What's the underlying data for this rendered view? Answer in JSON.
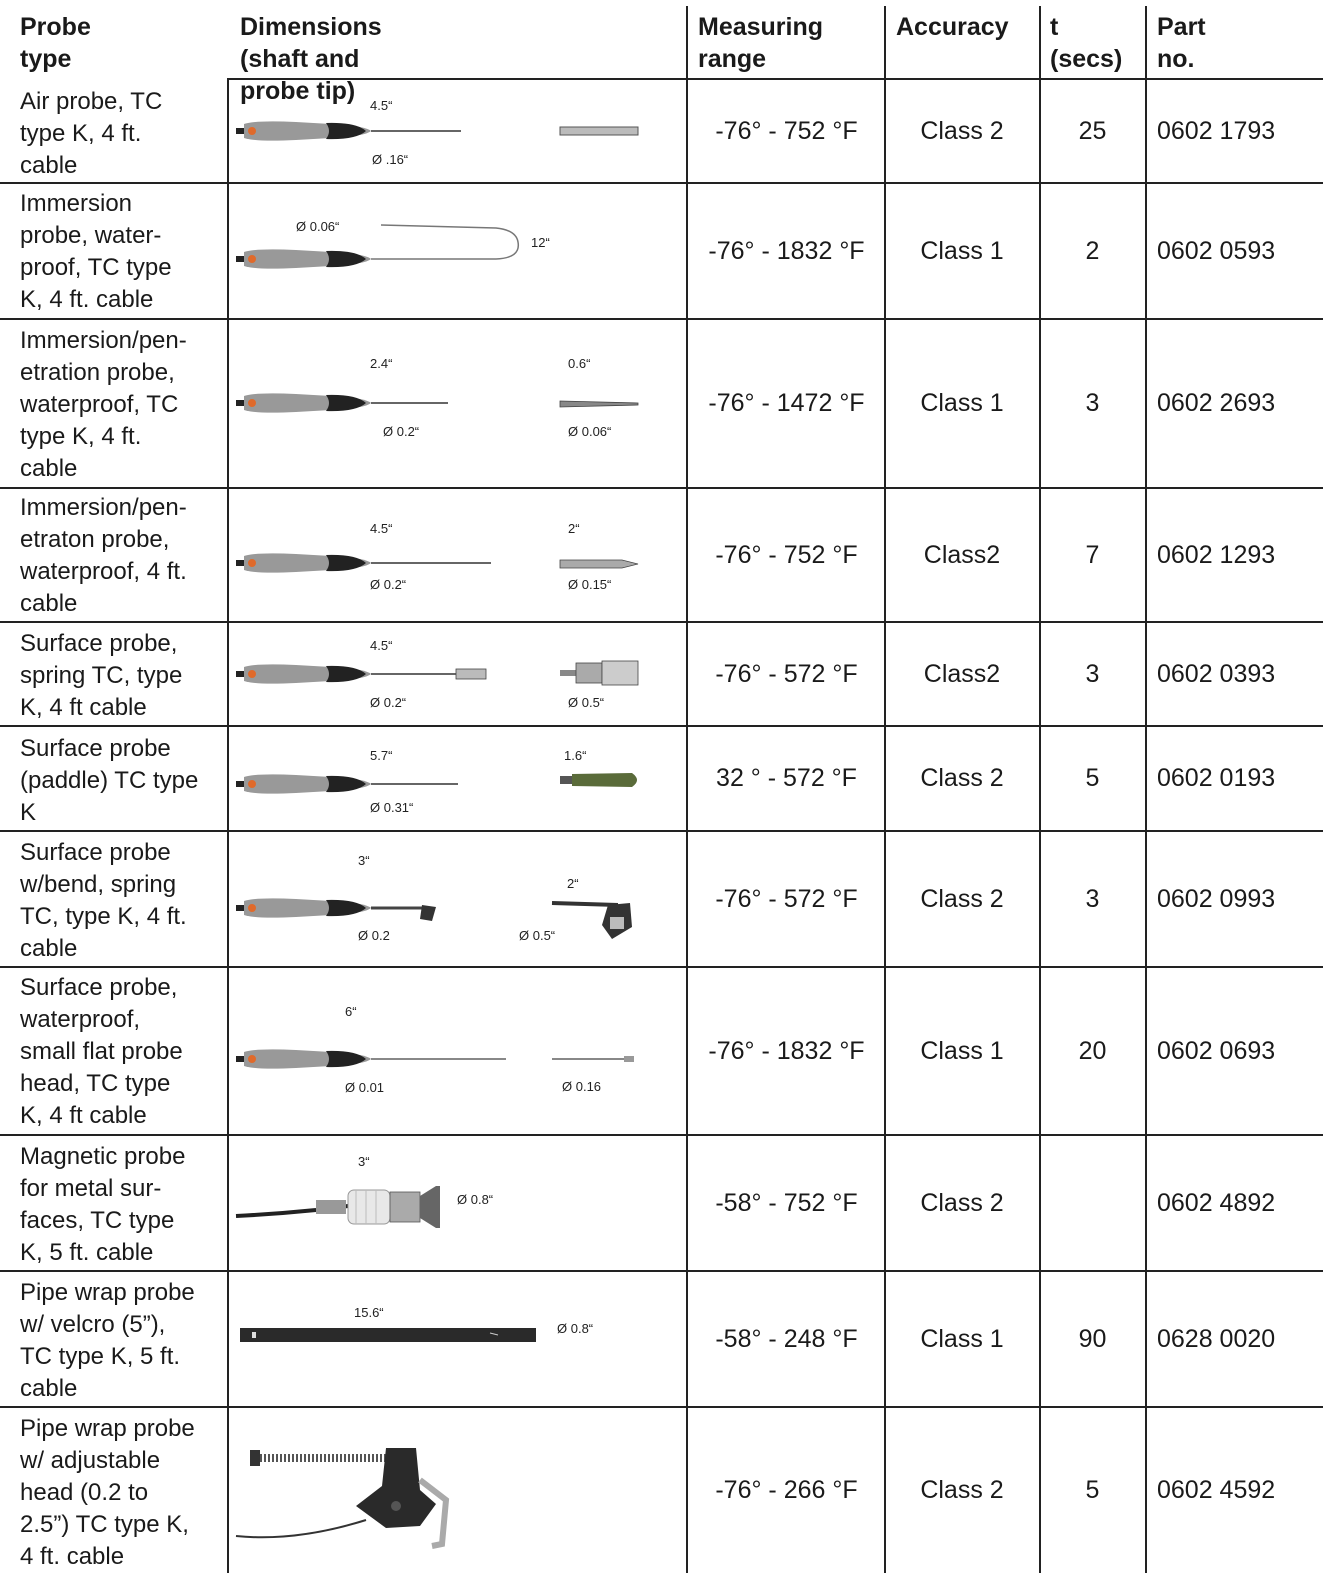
{
  "headers": {
    "probe_type": "Probe type",
    "dimensions": "Dimensions (shaft and probe tip)",
    "measuring_line1": "Measuring",
    "measuring_line2": "range",
    "accuracy": "Accuracy",
    "t_line1": "t",
    "t_line2": "(secs)",
    "part_no": "Part no."
  },
  "rows": [
    {
      "desc": [
        "Air probe, TC",
        "type K, 4 ft.",
        "cable"
      ],
      "range": "-76° - 752 °F",
      "accuracy": "Class 2",
      "t": "25",
      "part": "0602 1793",
      "dims": {
        "shaft_len": "4.5“",
        "shaft_dia": "Ø .16“"
      }
    },
    {
      "desc": [
        "Immersion",
        "probe, water-",
        "proof, TC type",
        "K, 4 ft. cable"
      ],
      "range": "-76° - 1832 °F",
      "accuracy": "Class 1",
      "t": "2",
      "part": "0602 0593",
      "dims": {
        "shaft_dia": "Ø 0.06“",
        "shaft_len": "12“"
      }
    },
    {
      "desc": [
        "Immersion/pen-",
        "etration probe,",
        "waterproof, TC",
        "type K, 4 ft.",
        "cable"
      ],
      "range": "-76° - 1472 °F",
      "accuracy": "Class 1",
      "t": "3",
      "part": "0602 2693",
      "dims": {
        "shaft_len": "2.4“",
        "shaft_dia": "Ø 0.2“",
        "tip_len": "0.6“",
        "tip_dia": "Ø 0.06“"
      }
    },
    {
      "desc": [
        "Immersion/pen-",
        "etraton probe,",
        "waterproof,  4 ft.",
        "cable"
      ],
      "range": "-76° - 752 °F",
      "accuracy": "Class2",
      "t": "7",
      "part": "0602 1293",
      "dims": {
        "shaft_len": "4.5“",
        "shaft_dia": "Ø 0.2“",
        "tip_len": "2“",
        "tip_dia": "Ø 0.15“"
      }
    },
    {
      "desc": [
        "Surface probe,",
        "spring TC, type",
        "K, 4 ft cable"
      ],
      "range": "-76° - 572 °F",
      "accuracy": "Class2",
      "t": "3",
      "part": "0602 0393",
      "dims": {
        "shaft_len": "4.5“",
        "shaft_dia": "Ø 0.2“",
        "tip_dia": "Ø 0.5“"
      }
    },
    {
      "desc": [
        "Surface probe",
        "(paddle) TC type",
        "K"
      ],
      "range": "32 ° - 572 °F",
      "accuracy": "Class 2",
      "t": "5",
      "part": "0602 0193",
      "dims": {
        "shaft_len": "5.7“",
        "shaft_dia": "Ø 0.31“",
        "tip_len": "1.6“"
      }
    },
    {
      "desc": [
        "Surface probe",
        "w/bend, spring",
        "TC, type K, 4 ft.",
        "cable"
      ],
      "range": "-76° - 572 °F",
      "accuracy": "Class 2",
      "t": "3",
      "part": "0602 0993",
      "dims": {
        "shaft_len": "3“",
        "shaft_dia": "Ø 0.2",
        "tip_len": "2“",
        "tip_dia": "Ø 0.5“"
      }
    },
    {
      "desc": [
        "Surface probe,",
        "waterproof,",
        "small flat probe",
        "head, TC type",
        "K, 4 ft cable"
      ],
      "range": "-76° - 1832 °F",
      "accuracy": "Class 1",
      "t": "20",
      "part": "0602 0693",
      "dims": {
        "shaft_len": "6“",
        "shaft_dia": "Ø 0.01",
        "tip_dia": "Ø 0.16"
      }
    },
    {
      "desc": [
        "Magnetic probe",
        "for metal sur-",
        "faces, TC type",
        "K, 5 ft. cable"
      ],
      "range": "-58° - 752 °F",
      "accuracy": "Class 2",
      "t": "",
      "part": "0602 4892",
      "dims": {
        "shaft_len": "3“",
        "shaft_dia": "Ø 0.8“"
      }
    },
    {
      "desc": [
        "Pipe wrap probe",
        "w/ velcro (5”),",
        "TC type K, 5 ft.",
        "cable"
      ],
      "range": "-58° - 248 °F",
      "accuracy": "Class 1",
      "t": "90",
      "part": "0628 0020",
      "dims": {
        "shaft_len": "15.6“",
        "shaft_dia": "Ø 0.8“"
      }
    },
    {
      "desc": [
        "Pipe wrap probe",
        "w/ adjustable",
        "head (0.2 to",
        "2.5”) TC type K,",
        "4 ft. cable"
      ],
      "range": "-76° - 266 °F",
      "accuracy": "Class 2",
      "t": "5",
      "part": "0602 4592",
      "dims": {}
    }
  ]
}
